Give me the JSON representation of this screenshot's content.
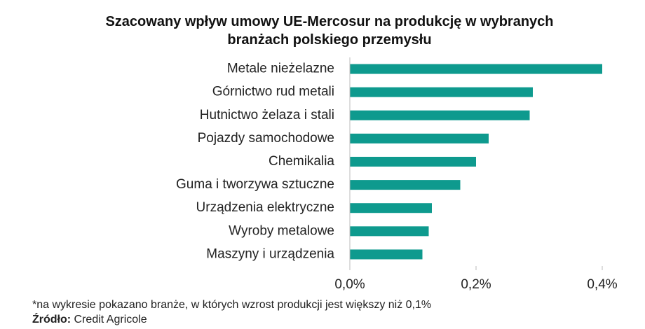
{
  "chart_data": {
    "type": "hbar",
    "title": "Szacowany wpływ umowy UE-Mercosur na produkcję w wybranych branżach polskiego przemysłu",
    "categories": [
      "Metale nieżelazne",
      "Górnictwo rud metali",
      "Hutnictwo żelaza i stali",
      "Pojazdy samochodowe",
      "Chemikalia",
      "Guma i tworzywa sztuczne",
      "Urządzenia elektryczne",
      "Wyroby metalowe",
      "Maszyny i urządzenia"
    ],
    "values": [
      0.4,
      0.29,
      0.285,
      0.22,
      0.2,
      0.175,
      0.13,
      0.125,
      0.115
    ],
    "color": "#0e9a8e",
    "xlim": [
      0,
      0.4
    ],
    "xticks": [
      {
        "value": 0,
        "label": "0,0%"
      },
      {
        "value": 0.2,
        "label": "0,2%"
      },
      {
        "value": 0.4,
        "label": "0,4%"
      }
    ],
    "footnote": "*na wykresie pokazano branże, w których wzrost produkcji jest większy niż 0,1%",
    "source_label": "Źródło:",
    "source": "Credit Agricole"
  }
}
